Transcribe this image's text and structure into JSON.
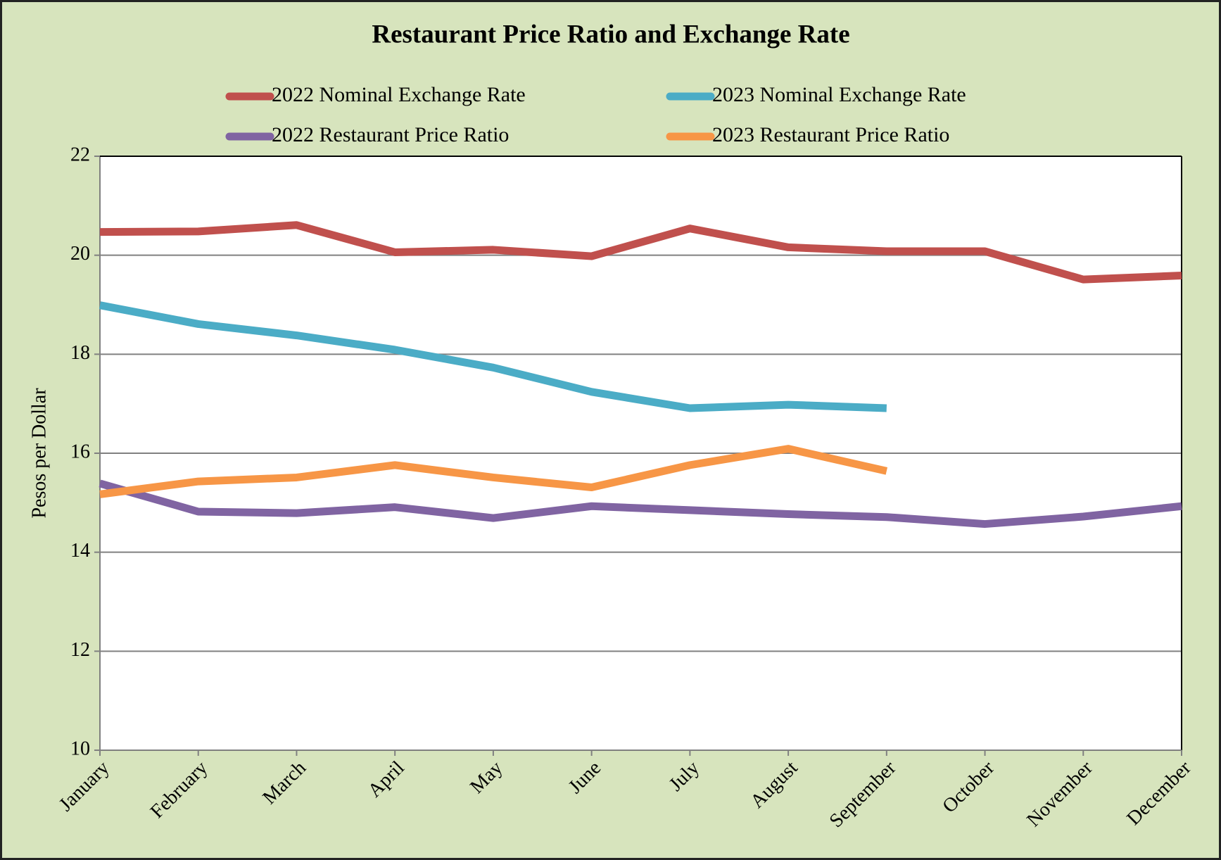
{
  "chart_data": {
    "type": "line",
    "title": "Restaurant Price Ratio and Exchange Rate",
    "y_label": "Pesos per Dollar",
    "categories": [
      "January",
      "February",
      "March",
      "April",
      "May",
      "June",
      "July",
      "August",
      "September",
      "October",
      "November",
      "December"
    ],
    "series": [
      {
        "name": "2022 Nominal Exchange Rate",
        "color": "#c0504d",
        "values": [
          20.47,
          20.48,
          20.61,
          20.06,
          20.11,
          19.98,
          20.54,
          20.16,
          20.08,
          20.08,
          19.51,
          19.59
        ]
      },
      {
        "name": "2023 Nominal Exchange Rate",
        "color": "#4bacc6",
        "values": [
          18.99,
          18.61,
          18.38,
          18.09,
          17.73,
          17.24,
          16.91,
          16.98,
          16.91,
          null,
          null,
          null
        ]
      },
      {
        "name": "2022 Restaurant Price Ratio",
        "color": "#8064a2",
        "values": [
          15.39,
          14.82,
          14.79,
          14.91,
          14.69,
          14.93,
          14.85,
          14.77,
          14.71,
          14.57,
          14.72,
          14.93
        ]
      },
      {
        "name": "2023 Restaurant Price Ratio",
        "color": "#f79646",
        "values": [
          15.17,
          15.43,
          15.51,
          15.76,
          15.51,
          15.31,
          15.76,
          16.09,
          15.64,
          null,
          null,
          null
        ]
      }
    ],
    "ylim": [
      10,
      22
    ],
    "yticks": [
      10,
      12,
      14,
      16,
      18,
      20,
      22
    ],
    "grid": true
  }
}
